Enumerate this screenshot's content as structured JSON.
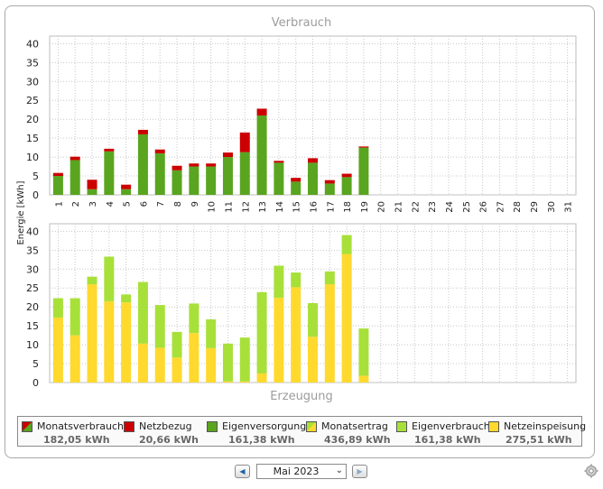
{
  "chart_data": [
    {
      "type": "bar",
      "title": "Verbrauch",
      "stacked": true,
      "categories": [
        "1",
        "2",
        "3",
        "4",
        "5",
        "6",
        "7",
        "8",
        "9",
        "10",
        "11",
        "12",
        "13",
        "14",
        "15",
        "16",
        "17",
        "18",
        "19",
        "20",
        "21",
        "22",
        "23",
        "24",
        "25",
        "26",
        "27",
        "28",
        "29",
        "30",
        "31"
      ],
      "series": [
        {
          "name": "Eigenversorgung",
          "color": "#5aa520",
          "values": [
            5.0,
            9.2,
            1.5,
            11.5,
            1.5,
            16.0,
            11.0,
            6.5,
            7.5,
            7.5,
            10.0,
            11.3,
            21.0,
            8.5,
            3.5,
            8.5,
            3.0,
            4.7,
            12.5,
            0,
            0,
            0,
            0,
            0,
            0,
            0,
            0,
            0,
            0,
            0,
            0
          ]
        },
        {
          "name": "Netzbezug",
          "color": "#cc0000",
          "values": [
            0.8,
            0.9,
            2.5,
            0.7,
            1.2,
            1.2,
            1.0,
            1.2,
            0.8,
            0.8,
            1.2,
            5.2,
            1.8,
            0.5,
            1.0,
            1.2,
            0.9,
            0.9,
            0.3,
            0,
            0,
            0,
            0,
            0,
            0,
            0,
            0,
            0,
            0,
            0,
            0
          ]
        }
      ],
      "ylabel": "Energie [kWh]",
      "ylim": [
        0,
        42
      ],
      "yticks": [
        0,
        5,
        10,
        15,
        20,
        25,
        30,
        35,
        40
      ],
      "grid": true
    },
    {
      "type": "bar",
      "title": "Erzeugung",
      "stacked": true,
      "categories": [
        "1",
        "2",
        "3",
        "4",
        "5",
        "6",
        "7",
        "8",
        "9",
        "10",
        "11",
        "12",
        "13",
        "14",
        "15",
        "16",
        "17",
        "18",
        "19",
        "20",
        "21",
        "22",
        "23",
        "24",
        "25",
        "26",
        "27",
        "28",
        "29",
        "30",
        "31"
      ],
      "series": [
        {
          "name": "Netzeinspeisung",
          "color": "#ffd92e",
          "values": [
            17.2,
            12.5,
            26.0,
            21.5,
            21.2,
            10.3,
            9.2,
            6.6,
            13.1,
            9.1,
            0.3,
            0.3,
            2.4,
            22.4,
            25.2,
            12.1,
            26.0,
            34.0,
            1.8,
            0,
            0,
            0,
            0,
            0,
            0,
            0,
            0,
            0,
            0,
            0,
            0
          ]
        },
        {
          "name": "Eigenverbrauch",
          "color": "#a8e03a",
          "values": [
            5.1,
            9.8,
            2.0,
            11.8,
            2.1,
            16.3,
            11.3,
            6.8,
            7.8,
            7.6,
            10.0,
            11.6,
            21.5,
            8.5,
            3.9,
            8.9,
            3.4,
            5.0,
            12.5,
            0,
            0,
            0,
            0,
            0,
            0,
            0,
            0,
            0,
            0,
            0,
            0
          ]
        }
      ],
      "ylim": [
        0,
        42
      ],
      "yticks": [
        0,
        5,
        10,
        15,
        20,
        25,
        30,
        35,
        40
      ],
      "grid": true
    }
  ],
  "legend": [
    {
      "label": "Monatsverbrauch",
      "value": "182,05 kWh",
      "colors": [
        "#cc0000",
        "#5aa520"
      ]
    },
    {
      "label": "Netzbezug",
      "value": "20,66 kWh",
      "colors": [
        "#cc0000"
      ]
    },
    {
      "label": "Eigenversorgung",
      "value": "161,38 kWh",
      "colors": [
        "#5aa520"
      ]
    },
    {
      "label": "Monatsertrag",
      "value": "436,89 kWh",
      "colors": [
        "#a8e03a",
        "#ffd92e"
      ]
    },
    {
      "label": "Eigenverbrauch",
      "value": "161,38 kWh",
      "colors": [
        "#a8e03a"
      ]
    },
    {
      "label": "Netzeinspeisung",
      "value": "275,51 kWh",
      "colors": [
        "#ffd92e"
      ]
    }
  ],
  "nav": {
    "month": "Mai 2023",
    "prev_icon": "arrow-left-icon",
    "next_icon": "arrow-right-icon",
    "settings_icon": "gear-icon"
  },
  "axis_label_color": "#222222",
  "grid_color": "#c8c8c8"
}
